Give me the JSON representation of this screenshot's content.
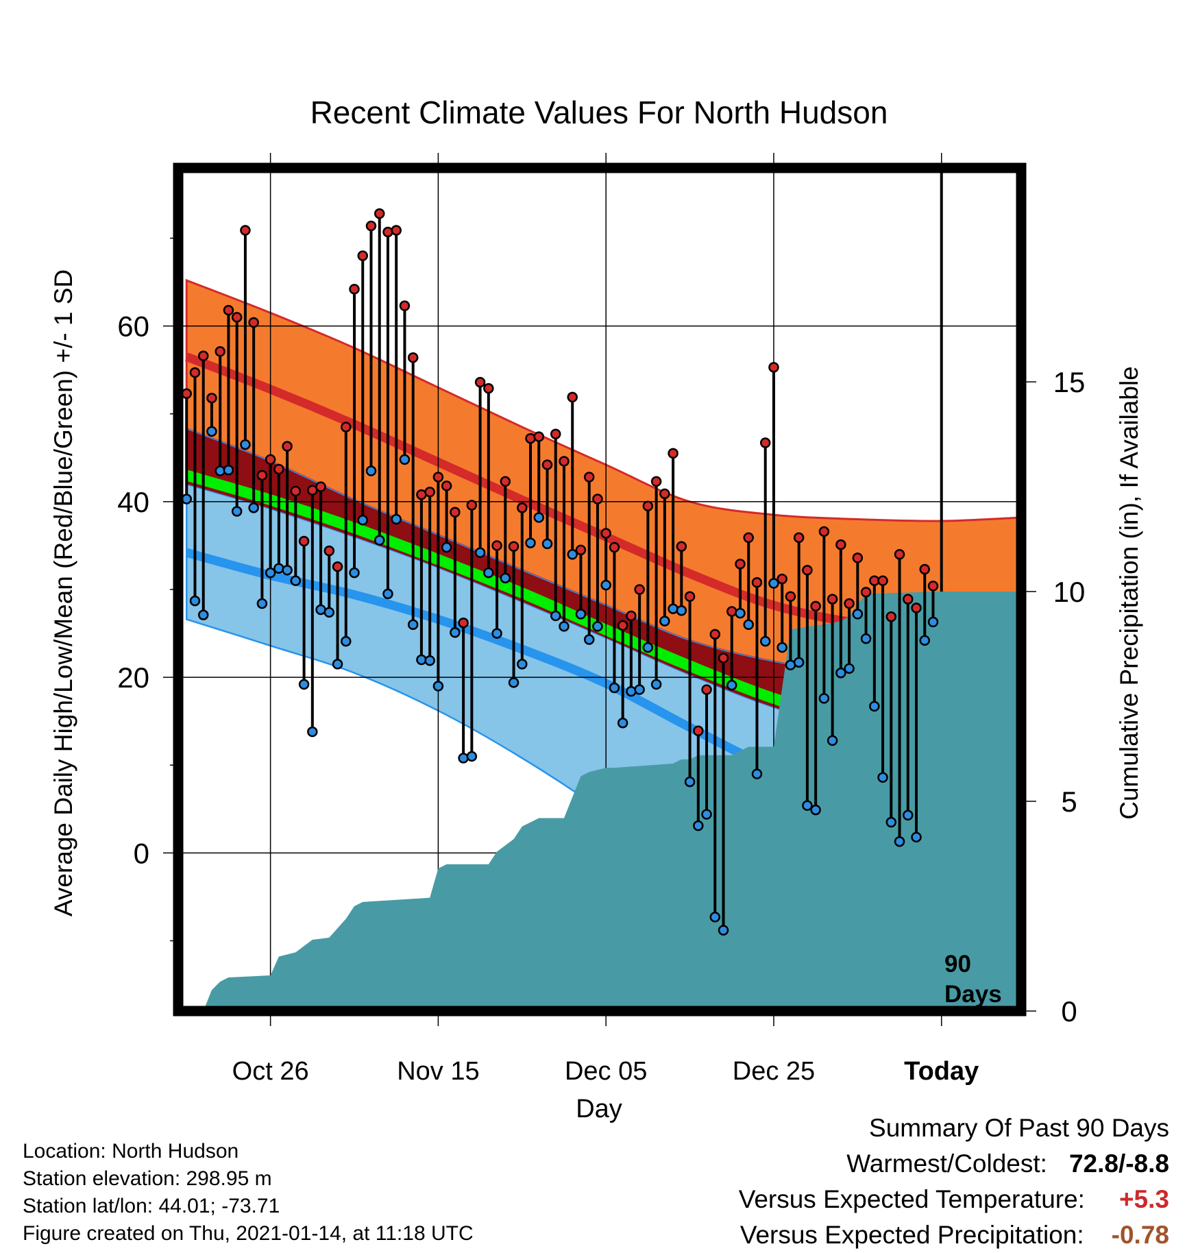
{
  "chart_data": {
    "type": "line",
    "title": "Recent Climate Values For North Hudson",
    "xlabel": "Day",
    "ylabel": "Average Daily High/Low/Mean (Red/Blue/Green) +/- 1 SD",
    "y2label": "Cumulative Precipitation (in), If Available",
    "ylim": [
      -18,
      78
    ],
    "y2lim": [
      0,
      20.1
    ],
    "yticks": [
      0,
      20,
      40,
      60
    ],
    "y2ticks": [
      0,
      5,
      10,
      15
    ],
    "xticks": [
      {
        "day": 10,
        "label": "Oct 26"
      },
      {
        "day": 30,
        "label": "Nov 15"
      },
      {
        "day": 50,
        "label": "Dec 05"
      },
      {
        "day": 70,
        "label": "Dec 25"
      },
      {
        "day": 90,
        "label": "Today"
      }
    ],
    "xlim": [
      -1,
      99.5
    ],
    "today_marker": {
      "day": 90,
      "label_line1": "90",
      "label_line2": "Days"
    },
    "grid": true,
    "climatology": {
      "days": [
        0,
        10,
        20,
        30,
        40,
        50,
        60,
        70,
        80,
        90,
        99.5
      ],
      "high_mean": [
        56.5,
        52.8,
        48.8,
        44.5,
        40.2,
        36.0,
        31.8,
        28.2,
        26.2,
        25.7,
        26.7
      ],
      "high_upper": [
        65.2,
        61.5,
        57.5,
        53.0,
        48.5,
        44.2,
        40.0,
        38.5,
        38.0,
        37.8,
        38.2
      ],
      "high_lower": [
        48.3,
        44.6,
        40.2,
        36.2,
        32.2,
        28.2,
        24.2,
        21.8,
        20.5,
        20.1,
        20.0
      ],
      "mean_mean": [
        43.0,
        40.2,
        37.0,
        33.4,
        29.6,
        25.4,
        21.3,
        17.6,
        14.8,
        13.8,
        14.0
      ],
      "low_mean": [
        34.2,
        31.6,
        29.4,
        26.6,
        23.2,
        19.3,
        14.3,
        9.6,
        6.4,
        4.9,
        5.0
      ],
      "low_upper": [
        42.0,
        39.2,
        36.0,
        32.5,
        28.6,
        24.5,
        20.3,
        16.6,
        14.0,
        13.0,
        13.3
      ],
      "low_lower": [
        26.6,
        23.6,
        20.5,
        16.2,
        10.8,
        4.5,
        -3.0,
        -8.0,
        -12.0,
        -14.0,
        -14.0
      ]
    },
    "series": [
      {
        "name": "High",
        "color": "#d42a2a",
        "values": [
          52.3,
          54.7,
          56.6,
          51.8,
          57.1,
          61.8,
          61.0,
          70.9,
          60.4,
          43.0,
          44.8,
          43.7,
          46.3,
          41.2,
          35.5,
          41.3,
          41.7,
          34.4,
          32.6,
          48.5,
          64.2,
          68.0,
          71.4,
          72.8,
          70.7,
          70.9,
          62.3,
          56.4,
          40.8,
          41.1,
          42.8,
          41.8,
          38.8,
          26.2,
          39.6,
          53.6,
          52.9,
          35.0,
          42.3,
          34.9,
          39.3,
          47.2,
          47.4,
          44.2,
          47.7,
          44.6,
          51.9,
          34.5,
          42.8,
          40.3,
          36.4,
          34.8,
          25.9,
          27.0,
          30.0,
          39.5,
          42.3,
          40.9,
          45.5,
          34.9,
          29.2,
          13.9,
          18.6,
          24.9,
          22.2,
          27.5,
          32.9,
          35.9,
          30.8,
          46.7,
          55.3,
          31.2,
          29.2,
          35.9,
          32.2,
          28.1,
          36.6,
          28.9,
          35.1,
          28.4,
          33.6,
          29.7,
          31.0,
          31.0,
          26.9,
          34.0,
          28.9,
          27.9,
          32.3,
          30.4
        ]
      },
      {
        "name": "Low",
        "color": "#2e8de0",
        "values": [
          40.3,
          28.7,
          27.1,
          48.0,
          43.5,
          43.6,
          38.9,
          46.5,
          39.3,
          28.4,
          31.9,
          32.4,
          32.2,
          31.0,
          19.2,
          13.8,
          27.7,
          27.4,
          21.5,
          24.1,
          31.9,
          37.9,
          43.5,
          35.6,
          29.5,
          38.0,
          44.8,
          26.0,
          22.0,
          21.9,
          19.0,
          34.8,
          25.1,
          10.8,
          11.0,
          34.2,
          31.9,
          25.0,
          31.3,
          19.4,
          21.5,
          35.3,
          38.2,
          35.2,
          27.0,
          25.8,
          34.0,
          27.2,
          24.3,
          25.8,
          30.5,
          18.8,
          14.8,
          18.4,
          18.6,
          23.4,
          19.2,
          26.4,
          27.8,
          27.6,
          8.1,
          3.1,
          4.4,
          -7.3,
          -8.8,
          19.1,
          27.3,
          26.0,
          9.0,
          24.1,
          30.7,
          23.4,
          21.4,
          21.7,
          5.4,
          4.9,
          17.6,
          12.8,
          20.5,
          21.0,
          27.2,
          24.4,
          16.7,
          8.6,
          3.5,
          1.3,
          4.3,
          1.8,
          24.2,
          26.3
        ]
      },
      {
        "name": "Cumulative Precipitation",
        "color": "#489ba4",
        "days": [
          -0.5,
          2,
          3,
          4,
          5,
          10,
          11,
          13,
          15,
          17,
          19,
          20,
          21,
          29,
          30,
          31,
          36,
          37,
          39,
          40,
          42,
          45,
          46,
          47,
          48,
          50,
          51,
          58,
          59,
          60,
          61,
          65,
          66,
          67,
          68,
          69,
          70,
          72,
          77,
          78,
          79,
          80,
          81,
          90,
          99.5
        ],
        "values": [
          0,
          0,
          0.5,
          0.7,
          0.8,
          0.85,
          1.3,
          1.4,
          1.7,
          1.75,
          2.2,
          2.5,
          2.6,
          2.7,
          3.4,
          3.5,
          3.5,
          3.8,
          4.1,
          4.4,
          4.6,
          4.6,
          5.1,
          5.6,
          5.7,
          5.8,
          5.8,
          5.9,
          6.0,
          6.0,
          6.1,
          6.1,
          6.2,
          6.3,
          6.3,
          6.3,
          6.3,
          9.1,
          9.25,
          9.3,
          9.4,
          9.7,
          9.95,
          10.0,
          10.0
        ]
      }
    ]
  },
  "footer": {
    "location": "Location: North Hudson",
    "elevation": "Station elevation: 298.95 m",
    "latlon": "Station lat/lon: 44.01; -73.71",
    "created": "Figure created on Thu, 2021-01-14, at 11:18 UTC"
  },
  "summary": {
    "heading": "Summary Of Past 90 Days",
    "warmest_label": "Warmest/Coldest:",
    "warmest_value": "72.8/-8.8",
    "temp_label": "Versus Expected Temperature:",
    "temp_value": "+5.3",
    "temp_color": "#cc2a2a",
    "precip_label": "Versus Expected Precipitation:",
    "precip_value": "-0.78",
    "precip_color": "#a0542a"
  },
  "colors": {
    "high_band": "#f47b2e",
    "high_line": "#d42a2a",
    "low_band": "#86c4e8",
    "low_line": "#2794ee",
    "mean_line": "#00ee00",
    "overlap": "#8e0e13",
    "precip": "#489ba4",
    "marker_high": "#d42a2a",
    "marker_low": "#2e8de0"
  }
}
